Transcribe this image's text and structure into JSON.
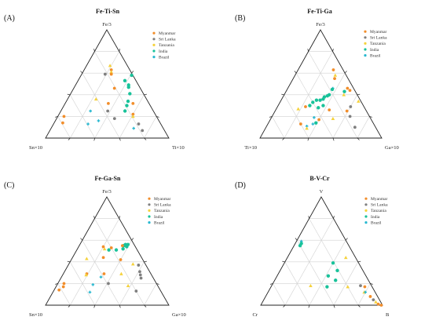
{
  "colors": {
    "Myanmar": "#f28e2b",
    "Sri Lanka": "#7f7f7f",
    "Tanzania": "#f5d23c",
    "India": "#19c29a",
    "Brazil": "#27b8d0"
  },
  "chart_data": [
    {
      "type": "scatter",
      "label": "(A)",
      "title": "Fe-Ti-Sn",
      "vertices": {
        "top": "Fe/3",
        "left": "Sn×10",
        "right": "Ti×10"
      },
      "legend": [
        "Myanmar",
        "Sri Lanka",
        "Tanzania",
        "India",
        "Brazil"
      ],
      "legend_position": "top-right",
      "grid": true,
      "points": [
        {
          "series": "Tanzania",
          "top": 67,
          "right": 19
        },
        {
          "series": "Myanmar",
          "top": 63,
          "right": 22
        },
        {
          "series": "Tanzania",
          "top": 61,
          "right": 23
        },
        {
          "series": "Sri Lanka",
          "top": 59,
          "right": 19
        },
        {
          "series": "Myanmar",
          "top": 59,
          "right": 24
        },
        {
          "series": "India",
          "top": 58,
          "right": 41
        },
        {
          "series": "India",
          "top": 53,
          "right": 38
        },
        {
          "series": "India",
          "top": 49,
          "right": 43
        },
        {
          "series": "India",
          "top": 47,
          "right": 44
        },
        {
          "series": "India",
          "top": 41,
          "right": 48
        },
        {
          "series": "Myanmar",
          "top": 46,
          "right": 33
        },
        {
          "series": "Tanzania",
          "top": 36,
          "right": 23
        },
        {
          "series": "Myanmar",
          "top": 32,
          "right": 35
        },
        {
          "series": "India",
          "top": 34,
          "right": 50
        },
        {
          "series": "India",
          "top": 30,
          "right": 51
        },
        {
          "series": "Myanmar",
          "top": 32,
          "right": 55
        },
        {
          "series": "India",
          "top": 25,
          "right": 52
        },
        {
          "series": "Sri Lanka",
          "top": 25,
          "right": 38
        },
        {
          "series": "Brazil",
          "top": 25,
          "right": 24
        },
        {
          "series": "Myanmar",
          "top": 20,
          "right": 5
        },
        {
          "series": "Myanmar",
          "top": 14,
          "right": 7
        },
        {
          "series": "Sri Lanka",
          "top": 18,
          "right": 47
        },
        {
          "series": "Myanmar",
          "top": 22,
          "right": 60
        },
        {
          "series": "Tanzania",
          "top": 20,
          "right": 61
        },
        {
          "series": "Brazil",
          "top": 16,
          "right": 35
        },
        {
          "series": "Brazil",
          "top": 13,
          "right": 28
        },
        {
          "series": "Sri Lanka",
          "top": 13,
          "right": 69
        },
        {
          "series": "Sri Lanka",
          "top": 7,
          "right": 75
        },
        {
          "series": "Brazil",
          "top": 9,
          "right": 67
        }
      ]
    },
    {
      "type": "scatter",
      "label": "(B)",
      "title": "Fe-Ti-Ga",
      "vertices": {
        "top": "Fe/3",
        "left": "Ti×10",
        "right": "Ga×10"
      },
      "legend": [
        "Myanmar",
        "Sri Lanka",
        "Tanzania",
        "India",
        "Brazil"
      ],
      "legend_position": "top-right",
      "grid": true,
      "points": [
        {
          "series": "Myanmar",
          "top": 63,
          "right": 29
        },
        {
          "series": "Tanzania",
          "top": 58,
          "right": 33
        },
        {
          "series": "Myanmar",
          "top": 55,
          "right": 34
        },
        {
          "series": "Brazil",
          "top": 46,
          "right": 37
        },
        {
          "series": "India",
          "top": 45,
          "right": 37
        },
        {
          "series": "Myanmar",
          "top": 46,
          "right": 49
        },
        {
          "series": "India",
          "top": 43,
          "right": 48
        },
        {
          "series": "Myanmar",
          "top": 44,
          "right": 52
        },
        {
          "series": "Tanzania",
          "top": 40,
          "right": 49
        },
        {
          "series": "India",
          "top": 40,
          "right": 37
        },
        {
          "series": "India",
          "top": 39,
          "right": 36
        },
        {
          "series": "India",
          "top": 38,
          "right": 34
        },
        {
          "series": "India",
          "top": 36,
          "right": 34
        },
        {
          "series": "India",
          "top": 35,
          "right": 32
        },
        {
          "series": "India",
          "top": 35,
          "right": 29
        },
        {
          "series": "India",
          "top": 33,
          "right": 27
        },
        {
          "series": "India",
          "top": 30,
          "right": 26
        },
        {
          "series": "India",
          "top": 30,
          "right": 37
        },
        {
          "series": "India",
          "top": 28,
          "right": 34
        },
        {
          "series": "Tanzania",
          "top": 34,
          "right": 64
        },
        {
          "series": "Myanmar",
          "top": 29,
          "right": 23
        },
        {
          "series": "Tanzania",
          "top": 27,
          "right": 18
        },
        {
          "series": "Sri Lanka",
          "top": 29,
          "right": 60
        },
        {
          "series": "Myanmar",
          "top": 25,
          "right": 59
        },
        {
          "series": "Myanmar",
          "top": 26,
          "right": 44
        },
        {
          "series": "Tanzania",
          "top": 18,
          "right": 51
        },
        {
          "series": "Brazil",
          "top": 19,
          "right": 35
        },
        {
          "series": "Sri Lanka",
          "top": 20,
          "right": 64
        },
        {
          "series": "Myanmar",
          "top": 17,
          "right": 40
        },
        {
          "series": "Brazil",
          "top": 13,
          "right": 37
        },
        {
          "series": "Myanmar",
          "top": 13,
          "right": 27
        },
        {
          "series": "India",
          "top": 14,
          "right": 39
        },
        {
          "series": "Brazil",
          "top": 11,
          "right": 33
        },
        {
          "series": "Tanzania",
          "top": 9,
          "right": 34
        },
        {
          "series": "Sri Lanka",
          "top": 10,
          "right": 73
        }
      ]
    },
    {
      "type": "scatter",
      "label": "(C)",
      "title": "Fe-Ga-Sn",
      "vertices": {
        "top": "Fe/3",
        "left": "Sn×10",
        "right": "Ga×10"
      },
      "legend": [
        "Myanmar",
        "Sri Lanka",
        "Tanzania",
        "India",
        "Brazil"
      ],
      "legend_position": "top-right",
      "grid": true,
      "points": [
        {
          "series": "India",
          "top": 55,
          "right": 36
        },
        {
          "series": "India",
          "top": 56,
          "right": 37
        },
        {
          "series": "India",
          "top": 55,
          "right": 38
        },
        {
          "series": "India",
          "top": 54,
          "right": 39
        },
        {
          "series": "India",
          "top": 56,
          "right": 39
        },
        {
          "series": "Myanmar",
          "top": 55,
          "right": 35
        },
        {
          "series": "India",
          "top": 52,
          "right": 37
        },
        {
          "series": "Tanzania",
          "top": 52,
          "right": 22
        },
        {
          "series": "Myanmar",
          "top": 54,
          "right": 20
        },
        {
          "series": "Myanmar",
          "top": 53,
          "right": 27
        },
        {
          "series": "India",
          "top": 51,
          "right": 26
        },
        {
          "series": "India",
          "top": 51,
          "right": 32
        },
        {
          "series": "Tanzania",
          "top": 43,
          "right": 12
        },
        {
          "series": "Myanmar",
          "top": 44,
          "right": 25
        },
        {
          "series": "Myanmar",
          "top": 42,
          "right": 40
        },
        {
          "series": "Tanzania",
          "top": 38,
          "right": 52
        },
        {
          "series": "Sri Lanka",
          "top": 37,
          "right": 57
        },
        {
          "series": "Myanmar",
          "top": 29,
          "right": 19
        },
        {
          "series": "Tanzania",
          "top": 28,
          "right": 19
        },
        {
          "series": "Brazil",
          "top": 26,
          "right": 32
        },
        {
          "series": "Myanmar",
          "top": 29,
          "right": 33
        },
        {
          "series": "Tanzania",
          "top": 29,
          "right": 47
        },
        {
          "series": "Sri Lanka",
          "top": 31,
          "right": 61
        },
        {
          "series": "Sri Lanka",
          "top": 28,
          "right": 63
        },
        {
          "series": "Sri Lanka",
          "top": 25,
          "right": 65
        },
        {
          "series": "Myanmar",
          "top": 20,
          "right": 5
        },
        {
          "series": "Myanmar",
          "top": 17,
          "right": 6
        },
        {
          "series": "Brazil",
          "top": 19,
          "right": 29
        },
        {
          "series": "Sri Lanka",
          "top": 20,
          "right": 41
        },
        {
          "series": "Tanzania",
          "top": 18,
          "right": 58
        },
        {
          "series": "Myanmar",
          "top": 14,
          "right": 4
        },
        {
          "series": "Brazil",
          "top": 12,
          "right": 30
        },
        {
          "series": "Sri Lanka",
          "top": 13,
          "right": 67
        }
      ]
    },
    {
      "type": "scatter",
      "label": "(D)",
      "title": "B-V-Cr",
      "vertices": {
        "top": "V",
        "left": "Cr",
        "right": "B"
      },
      "legend": [
        "Myanmar",
        "Sri Lanka",
        "Tanzania",
        "India",
        "Brazil"
      ],
      "legend_position": "top-right",
      "grid": true,
      "points": [
        {
          "series": "Brazil",
          "top": 59,
          "right": 4
        },
        {
          "series": "India",
          "top": 57,
          "right": 5
        },
        {
          "series": "India",
          "top": 55,
          "right": 5
        },
        {
          "series": "Tanzania",
          "top": 44,
          "right": 48
        },
        {
          "series": "India",
          "top": 39,
          "right": 40
        },
        {
          "series": "India",
          "top": 32,
          "right": 47
        },
        {
          "series": "India",
          "top": 27,
          "right": 42
        },
        {
          "series": "India",
          "top": 23,
          "right": 50
        },
        {
          "series": "Tanzania",
          "top": 18,
          "right": 32
        },
        {
          "series": "India",
          "top": 17,
          "right": 46
        },
        {
          "series": "Tanzania",
          "top": 17,
          "right": 63
        },
        {
          "series": "Sri Lanka",
          "top": 18,
          "right": 73
        },
        {
          "series": "Myanmar",
          "top": 17,
          "right": 77
        },
        {
          "series": "Tanzania",
          "top": 12,
          "right": 79
        },
        {
          "series": "Brazil",
          "top": 12,
          "right": 80
        },
        {
          "series": "Myanmar",
          "top": 8,
          "right": 86
        },
        {
          "series": "Sri Lanka",
          "top": 5,
          "right": 90
        },
        {
          "series": "Tanzania",
          "top": 3,
          "right": 93
        },
        {
          "series": "Myanmar",
          "top": 1,
          "right": 96
        },
        {
          "series": "Myanmar",
          "top": 0,
          "right": 99
        }
      ]
    }
  ]
}
